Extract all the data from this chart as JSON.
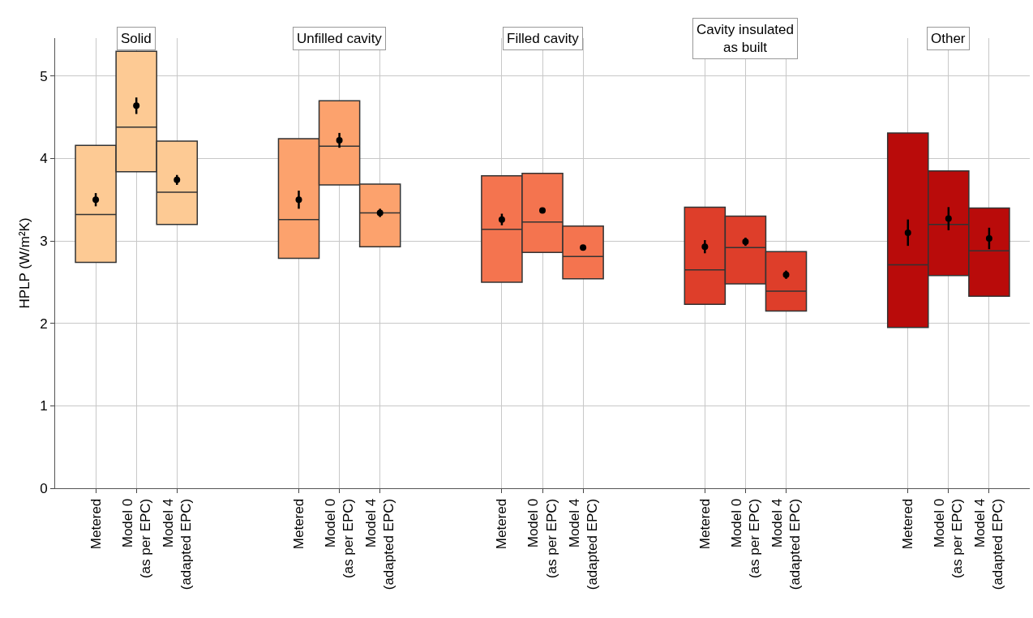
{
  "chart_data": {
    "type": "box",
    "ylabel": "HPLP (W/m²K)",
    "categories": [
      "Metered",
      "Model 0\n(as per EPC)",
      "Model 4\n(adapted EPC)",
      null,
      null,
      "Metered",
      "Model 0\n(as per EPC)",
      "Model 4\n(adapted EPC)",
      null,
      null,
      "Metered",
      "Model 0\n(as per EPC)",
      "Model 4\n(adapted EPC)",
      null,
      null,
      "Metered",
      "Model 0\n(as per EPC)",
      "Model 4\n(adapted EPC)",
      null,
      null,
      "Metered",
      "Model 0\n(as per EPC)",
      "Model 4\n(adapted EPC)"
    ],
    "annotations": [
      "Solid",
      "Unfilled cavity",
      "Filled cavity",
      "Cavity insulated\nas built",
      "Other"
    ],
    "boxes": [
      {
        "low": 2.74,
        "q1": 2.74,
        "median": 3.32,
        "q3": 4.16,
        "high": 4.16
      },
      {
        "low": 3.84,
        "q1": 3.84,
        "median": 4.38,
        "q3": 5.3,
        "high": 5.3
      },
      {
        "low": 3.2,
        "q1": 3.2,
        "median": 3.59,
        "q3": 4.21,
        "high": 4.21
      },
      null,
      null,
      {
        "low": 2.79,
        "q1": 2.79,
        "median": 3.26,
        "q3": 4.24,
        "high": 4.24
      },
      {
        "low": 3.68,
        "q1": 3.68,
        "median": 4.15,
        "q3": 4.7,
        "high": 4.7
      },
      {
        "low": 2.93,
        "q1": 2.93,
        "median": 3.34,
        "q3": 3.69,
        "high": 3.69
      },
      null,
      null,
      {
        "low": 2.5,
        "q1": 2.5,
        "median": 3.14,
        "q3": 3.79,
        "high": 3.79
      },
      {
        "low": 2.86,
        "q1": 2.86,
        "median": 3.23,
        "q3": 3.82,
        "high": 3.82
      },
      {
        "low": 2.54,
        "q1": 2.54,
        "median": 2.81,
        "q3": 3.18,
        "high": 3.18
      },
      null,
      null,
      {
        "low": 2.23,
        "q1": 2.23,
        "median": 2.65,
        "q3": 3.41,
        "high": 3.41
      },
      {
        "low": 2.48,
        "q1": 2.48,
        "median": 2.92,
        "q3": 3.3,
        "high": 3.3
      },
      {
        "low": 2.15,
        "q1": 2.15,
        "median": 2.39,
        "q3": 2.87,
        "high": 2.87
      },
      null,
      null,
      {
        "low": 1.95,
        "q1": 1.95,
        "median": 2.71,
        "q3": 4.31,
        "high": 4.31
      },
      {
        "low": 2.58,
        "q1": 2.58,
        "median": 3.2,
        "q3": 3.85,
        "high": 3.85
      },
      {
        "low": 2.33,
        "q1": 2.33,
        "median": 2.88,
        "q3": 3.4,
        "high": 3.4
      }
    ],
    "colors": [
      "#fdca94",
      "#fdca94",
      "#fdca94",
      null,
      null,
      "#fca26d",
      "#fca26d",
      "#fca26d",
      null,
      null,
      "#f4744f",
      "#f4744f",
      "#f4744f",
      null,
      null,
      "#de3e2a",
      "#de3e2a",
      "#de3e2a",
      null,
      null,
      "#b90b0a",
      "#b90b0a",
      "#b90b0a"
    ],
    "series": [
      {
        "type": "scatter",
        "color": "#000000",
        "values": [
          3.5,
          4.64,
          3.74,
          null,
          null,
          3.5,
          4.22,
          3.34,
          null,
          null,
          3.26,
          3.37,
          2.92,
          null,
          null,
          2.93,
          2.99,
          2.59,
          null,
          null,
          3.1,
          3.27,
          3.03
        ],
        "errors": [
          0.08,
          0.1,
          0.06,
          null,
          null,
          0.11,
          0.09,
          0.05,
          null,
          null,
          0.07,
          0.03,
          0.02,
          null,
          null,
          0.08,
          0.05,
          0.05,
          null,
          null,
          0.16,
          0.14,
          0.13
        ]
      }
    ],
    "marker": "circle",
    "ylim": [
      0,
      5.46
    ],
    "yticks": [
      0,
      1,
      2,
      3,
      4,
      5
    ],
    "grid": true
  }
}
